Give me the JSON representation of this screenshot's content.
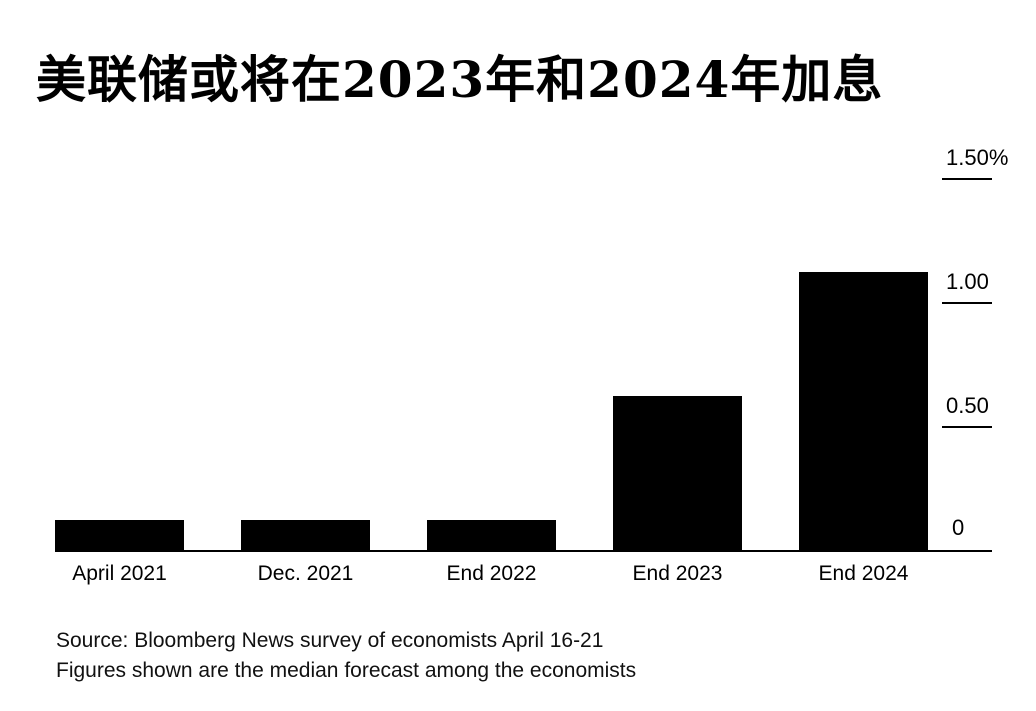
{
  "chart_data": {
    "type": "bar",
    "title": "美联储或将在2023年和2024年加息",
    "categories": [
      "April 2021",
      "Dec. 2021",
      "End 2022",
      "End 2023",
      "End 2024"
    ],
    "series": [
      {
        "values": [
          0.125,
          0.125,
          0.125,
          0.625,
          1.125
        ]
      }
    ],
    "ylim": [
      0,
      1.5
    ],
    "yticks": [
      0,
      0.5,
      1.0,
      1.5
    ],
    "ytick_labels": [
      "0",
      "0.50",
      "1.00",
      "1.50%"
    ],
    "yaxis_position": "right",
    "grid": false,
    "bar_color": "#000000",
    "xlabel": "",
    "ylabel": ""
  },
  "footer": {
    "source": "Source: Bloomberg News survey of economists April 16-21",
    "note": "Figures shown are the median forecast among the economists"
  }
}
